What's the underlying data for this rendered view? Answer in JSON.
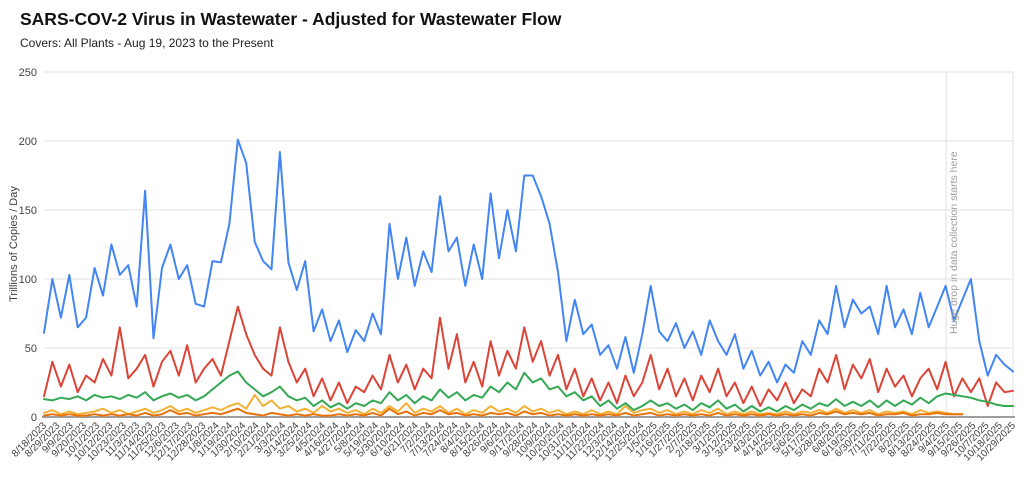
{
  "header": {
    "title": "SARS-COV-2 Virus in Wastewater - Adjusted for Wastewater Flow",
    "subtitle": "Covers: All Plants - Aug 19, 2023 to the Present"
  },
  "chart_data": {
    "type": "line",
    "title": "SARS-COV-2 Virus in Wastewater - Adjusted for Wastewater Flow",
    "subtitle": "Covers: All Plants - Aug 19, 2023 to the Present",
    "ylabel": "Trillions of Copies / Day",
    "xlabel": "",
    "ylim": [
      0,
      250
    ],
    "yticks": [
      0,
      50,
      100,
      150,
      200,
      250
    ],
    "grid": true,
    "legend_position": "none",
    "colors": {
      "grid": "#e2e2e2",
      "baseline": "#9e9e9e",
      "axis_text": "#424242",
      "annotation": "#9e9e9e"
    },
    "annotation": {
      "text": "Huge drop in data collection starts here",
      "x_frac": 0.931,
      "orientation": "vertical"
    },
    "x_tick_labels": [
      "8/18/2023",
      "8/29/2023",
      "9/9/2023",
      "9/20/2023",
      "10/1/2023",
      "10/12/2023",
      "10/23/2023",
      "11/3/2023",
      "11/14/2023",
      "11/25/2023",
      "12/6/2023",
      "12/17/2023",
      "12/28/2023",
      "1/8/2024",
      "1/19/2024",
      "1/30/2024",
      "2/10/2024",
      "2/21/2024",
      "3/3/2024",
      "3/14/2024",
      "3/25/2024",
      "4/5/2024",
      "4/16/2024",
      "4/27/2024",
      "5/8/2024",
      "5/19/2024",
      "5/30/2024",
      "6/10/2024",
      "6/21/2024",
      "7/2/2024",
      "7/13/2024",
      "7/24/2024",
      "8/4/2024",
      "8/15/2024",
      "8/26/2024",
      "9/6/2024",
      "9/17/2024",
      "9/28/2024",
      "10/9/2024",
      "10/20/2024",
      "10/31/2024",
      "11/11/2024",
      "11/22/2024",
      "12/3/2024",
      "12/14/2024",
      "12/25/2024",
      "1/5/2025",
      "1/16/2025",
      "1/27/2025",
      "2/7/2025",
      "2/18/2025",
      "3/1/2025",
      "3/12/2025",
      "3/23/2025",
      "4/3/2025",
      "4/14/2025",
      "4/25/2025",
      "5/6/2025",
      "5/17/2025",
      "5/28/2025",
      "6/8/2025",
      "6/19/2025",
      "6/30/2025",
      "7/11/2025",
      "7/22/2025",
      "8/2/2025",
      "8/13/2025",
      "8/24/2025",
      "9/4/2025",
      "9/15/2025",
      "9/26/2025",
      "10/7/2025",
      "10/18/2025",
      "10/29/2025"
    ],
    "x": [
      "8/18/2023",
      "8/25/2023",
      "9/1/2023",
      "9/8/2023",
      "9/15/2023",
      "9/22/2023",
      "9/29/2023",
      "10/6/2023",
      "10/13/2023",
      "10/20/2023",
      "10/27/2023",
      "11/3/2023",
      "11/10/2023",
      "11/17/2023",
      "11/24/2023",
      "12/1/2023",
      "12/8/2023",
      "12/15/2023",
      "12/22/2023",
      "12/29/2023",
      "1/5/2024",
      "1/12/2024",
      "1/19/2024",
      "1/26/2024",
      "2/2/2024",
      "2/9/2024",
      "2/16/2024",
      "2/23/2024",
      "3/1/2024",
      "3/8/2024",
      "3/15/2024",
      "3/22/2024",
      "3/29/2024",
      "4/5/2024",
      "4/12/2024",
      "4/19/2024",
      "4/26/2024",
      "5/3/2024",
      "5/10/2024",
      "5/17/2024",
      "5/24/2024",
      "5/31/2024",
      "6/7/2024",
      "6/14/2024",
      "6/21/2024",
      "6/28/2024",
      "7/5/2024",
      "7/12/2024",
      "7/19/2024",
      "7/26/2024",
      "8/2/2024",
      "8/9/2024",
      "8/16/2024",
      "8/23/2024",
      "8/30/2024",
      "9/6/2024",
      "9/13/2024",
      "9/20/2024",
      "9/27/2024",
      "10/4/2024",
      "10/11/2024",
      "10/18/2024",
      "10/25/2024",
      "11/1/2024",
      "11/8/2024",
      "11/15/2024",
      "11/22/2024",
      "11/29/2024",
      "12/6/2024",
      "12/13/2024",
      "12/20/2024",
      "12/27/2024",
      "1/3/2025",
      "1/10/2025",
      "1/17/2025",
      "1/24/2025",
      "1/31/2025",
      "2/7/2025",
      "2/14/2025",
      "2/21/2025",
      "2/28/2025",
      "3/7/2025",
      "3/14/2025",
      "3/21/2025",
      "3/28/2025",
      "4/4/2025",
      "4/11/2025",
      "4/18/2025",
      "4/25/2025",
      "5/2/2025",
      "5/9/2025",
      "5/16/2025",
      "5/23/2025",
      "5/30/2025",
      "6/6/2025",
      "6/13/2025",
      "6/20/2025",
      "6/27/2025",
      "7/4/2025",
      "7/11/2025",
      "7/18/2025",
      "7/25/2025",
      "8/1/2025",
      "8/8/2025",
      "8/15/2025",
      "8/22/2025",
      "8/29/2025",
      "9/5/2025",
      "9/12/2025",
      "9/19/2025",
      "9/26/2025",
      "10/3/2025",
      "10/10/2025",
      "10/17/2025",
      "10/24/2025",
      "10/29/2025"
    ],
    "series": [
      {
        "name": "blue",
        "color": "#4285F4",
        "values": [
          61,
          100,
          72,
          103,
          65,
          72,
          108,
          88,
          125,
          103,
          110,
          80,
          164,
          57,
          108,
          125,
          100,
          110,
          82,
          80,
          113,
          112,
          140,
          201,
          184,
          127,
          113,
          107,
          192,
          112,
          92,
          113,
          62,
          78,
          55,
          70,
          47,
          63,
          55,
          75,
          60,
          140,
          100,
          130,
          95,
          120,
          105,
          160,
          120,
          130,
          95,
          125,
          100,
          162,
          115,
          150,
          120,
          175,
          175,
          160,
          140,
          105,
          55,
          85,
          60,
          67,
          45,
          52,
          35,
          58,
          32,
          60,
          95,
          62,
          55,
          68,
          50,
          62,
          45,
          70,
          55,
          45,
          60,
          35,
          48,
          30,
          40,
          25,
          38,
          32,
          55,
          45,
          70,
          60,
          95,
          65,
          85,
          75,
          80,
          60,
          95,
          65,
          78,
          60,
          90,
          65,
          80,
          95,
          70,
          85,
          100,
          55,
          30,
          45,
          38,
          33
        ]
      },
      {
        "name": "red",
        "color": "#DB4437",
        "values": [
          15,
          40,
          22,
          38,
          18,
          30,
          25,
          42,
          30,
          65,
          28,
          35,
          45,
          22,
          40,
          48,
          30,
          52,
          25,
          35,
          42,
          30,
          55,
          80,
          60,
          45,
          35,
          30,
          65,
          40,
          25,
          35,
          15,
          28,
          12,
          25,
          10,
          22,
          18,
          30,
          20,
          45,
          25,
          38,
          20,
          35,
          28,
          72,
          35,
          60,
          25,
          40,
          22,
          55,
          30,
          48,
          35,
          65,
          40,
          55,
          30,
          45,
          20,
          35,
          15,
          28,
          12,
          25,
          10,
          30,
          15,
          25,
          45,
          20,
          35,
          15,
          28,
          12,
          30,
          18,
          35,
          15,
          25,
          10,
          22,
          8,
          20,
          12,
          25,
          10,
          20,
          15,
          35,
          25,
          45,
          20,
          38,
          28,
          42,
          18,
          35,
          22,
          30,
          15,
          28,
          35,
          20,
          40,
          15,
          28,
          18,
          28,
          8,
          25,
          18,
          19
        ]
      },
      {
        "name": "green",
        "color": "#34A853",
        "values": [
          13,
          12,
          14,
          13,
          15,
          12,
          16,
          14,
          15,
          13,
          16,
          14,
          18,
          12,
          15,
          17,
          14,
          16,
          12,
          15,
          20,
          25,
          30,
          33,
          25,
          20,
          15,
          18,
          22,
          15,
          12,
          14,
          8,
          12,
          7,
          10,
          6,
          10,
          8,
          12,
          10,
          18,
          12,
          16,
          10,
          15,
          12,
          20,
          14,
          18,
          12,
          16,
          14,
          22,
          18,
          25,
          20,
          32,
          25,
          28,
          20,
          22,
          15,
          18,
          12,
          15,
          8,
          12,
          6,
          10,
          5,
          8,
          12,
          8,
          10,
          6,
          9,
          5,
          10,
          7,
          12,
          6,
          9,
          4,
          8,
          4,
          7,
          4,
          8,
          5,
          9,
          6,
          10,
          8,
          13,
          8,
          11,
          8,
          12,
          7,
          12,
          8,
          12,
          9,
          14,
          10,
          15,
          17,
          16,
          15,
          14,
          12,
          11,
          9,
          8,
          8
        ]
      },
      {
        "name": "yellow",
        "color": "#F2B237",
        "values": [
          3,
          5,
          2,
          4,
          2,
          3,
          4,
          6,
          3,
          5,
          2,
          4,
          6,
          3,
          5,
          8,
          4,
          6,
          3,
          5,
          7,
          5,
          8,
          10,
          6,
          16,
          8,
          12,
          6,
          8,
          4,
          6,
          3,
          8,
          4,
          6,
          3,
          5,
          2,
          6,
          3,
          8,
          4,
          10,
          3,
          6,
          4,
          8,
          3,
          6,
          2,
          5,
          3,
          8,
          4,
          6,
          3,
          8,
          4,
          6,
          3,
          5,
          2,
          4,
          2,
          5,
          2,
          4,
          2,
          8,
          3,
          5,
          6,
          3,
          5,
          2,
          4,
          2,
          5,
          3,
          6,
          2,
          4,
          2,
          4,
          2,
          3,
          2,
          4,
          2,
          4,
          3,
          5,
          3,
          6,
          3,
          5,
          3,
          5,
          2,
          4,
          3,
          4,
          2,
          5,
          3,
          4,
          3,
          2,
          2,
          null,
          null,
          null,
          null,
          null,
          null
        ]
      },
      {
        "name": "orange",
        "color": "#E8710A",
        "values": [
          1,
          2,
          1,
          2,
          1,
          1,
          2,
          1,
          2,
          1,
          2,
          1,
          3,
          1,
          2,
          5,
          2,
          3,
          1,
          2,
          3,
          2,
          4,
          6,
          3,
          2,
          1,
          3,
          2,
          1,
          2,
          1,
          2,
          1,
          1,
          2,
          1,
          2,
          1,
          3,
          1,
          6,
          2,
          4,
          1,
          3,
          2,
          5,
          2,
          3,
          1,
          2,
          1,
          3,
          2,
          3,
          1,
          4,
          2,
          3,
          1,
          2,
          1,
          2,
          1,
          2,
          1,
          2,
          1,
          3,
          1,
          2,
          3,
          1,
          2,
          1,
          2,
          1,
          2,
          1,
          3,
          1,
          2,
          1,
          2,
          1,
          2,
          1,
          2,
          1,
          2,
          1,
          3,
          2,
          4,
          2,
          3,
          2,
          3,
          1,
          2,
          2,
          3,
          1,
          2,
          2,
          3,
          2,
          2,
          2,
          null,
          null,
          null,
          null,
          null,
          null
        ]
      }
    ]
  }
}
